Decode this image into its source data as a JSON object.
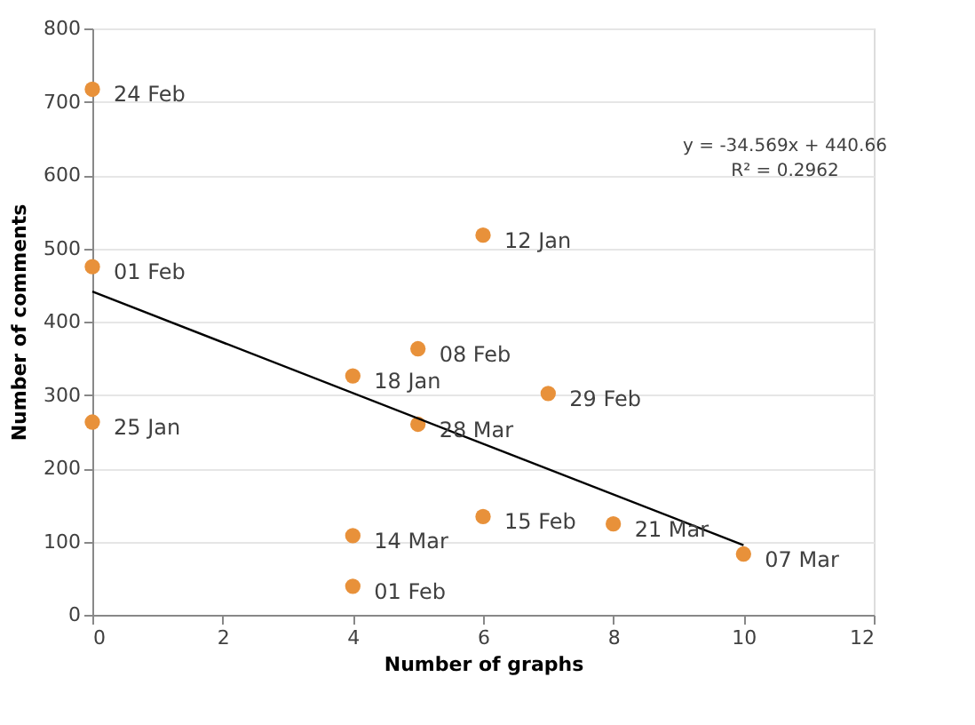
{
  "chart_data": {
    "type": "scatter",
    "xlabel": "Number of graphs",
    "ylabel": "Number of comments",
    "xlim": [
      0,
      12
    ],
    "xticks": [
      0,
      2,
      4,
      6,
      8,
      10,
      12
    ],
    "ylim": [
      0,
      800
    ],
    "yticks": [
      0,
      100,
      200,
      300,
      400,
      500,
      600,
      700,
      800
    ],
    "grid": "y",
    "series": [
      {
        "type": "scatter",
        "color": "#e8913a",
        "marker": "circle",
        "x": [
          0,
          0,
          0,
          4,
          4,
          4,
          5,
          5,
          6,
          6,
          7,
          8,
          10
        ],
        "values": [
          717,
          475,
          263,
          326,
          108,
          39,
          363,
          260,
          518,
          134,
          302,
          124,
          83
        ]
      },
      {
        "type": "line",
        "color": "#000000",
        "marker": "none",
        "x": [
          0,
          10
        ],
        "values": [
          441,
          95
        ]
      }
    ],
    "annotations": [
      {
        "text": "24 Feb",
        "x": 0,
        "y": 717
      },
      {
        "text": "01 Feb",
        "x": 0,
        "y": 475
      },
      {
        "text": "25 Jan",
        "x": 0,
        "y": 263
      },
      {
        "text": "18 Jan",
        "x": 4,
        "y": 326
      },
      {
        "text": "14 Mar",
        "x": 4,
        "y": 108
      },
      {
        "text": "01 Feb",
        "x": 4,
        "y": 39
      },
      {
        "text": "08 Feb",
        "x": 5,
        "y": 363
      },
      {
        "text": "28 Mar",
        "x": 5,
        "y": 260
      },
      {
        "text": "12 Jan",
        "x": 6,
        "y": 518
      },
      {
        "text": "15 Feb",
        "x": 6,
        "y": 134
      },
      {
        "text": "29 Feb",
        "x": 7,
        "y": 302
      },
      {
        "text": "21 Mar",
        "x": 8,
        "y": 124
      },
      {
        "text": "07 Mar",
        "x": 10,
        "y": 83
      },
      "y = -34.569x + 440.66",
      "R² = 0.2962"
    ]
  }
}
